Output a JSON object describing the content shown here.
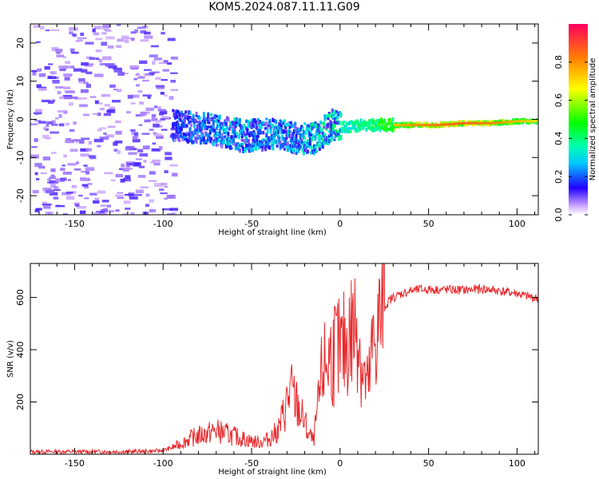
{
  "title": "KOM5.2024.087.11.11.G09",
  "chart_data": [
    {
      "type": "heatmap",
      "xlabel": "Height of straight line (km)",
      "ylabel": "Frequency (Hz)",
      "xlim": [
        -175,
        112
      ],
      "ylim": [
        -25,
        25
      ],
      "xticks": [
        -150,
        -100,
        -50,
        0,
        50,
        100
      ],
      "yticks": [
        -20,
        -10,
        0,
        10,
        20
      ],
      "colorbar": {
        "label": "Normalized spectral amplitude",
        "range": [
          0,
          1
        ],
        "ticks": [
          "0.0",
          "0.2",
          "0.4",
          "0.6",
          "0.8"
        ]
      },
      "signal_track": [
        {
          "x": -95,
          "y": -1.5,
          "amp": 0.15
        },
        {
          "x": -85,
          "y": -2,
          "amp": 0.2
        },
        {
          "x": -75,
          "y": -2.5,
          "amp": 0.2
        },
        {
          "x": -65,
          "y": -3.5,
          "amp": 0.25
        },
        {
          "x": -55,
          "y": -4.5,
          "amp": 0.25
        },
        {
          "x": -45,
          "y": -4,
          "amp": 0.25
        },
        {
          "x": -35,
          "y": -3.5,
          "amp": 0.25
        },
        {
          "x": -25,
          "y": -5,
          "amp": 0.25
        },
        {
          "x": -15,
          "y": -5,
          "amp": 0.3
        },
        {
          "x": -5,
          "y": -1.5,
          "amp": 0.3
        },
        {
          "x": 5,
          "y": -2,
          "amp": 0.35
        },
        {
          "x": 15,
          "y": -1.5,
          "amp": 0.4
        },
        {
          "x": 25,
          "y": -1.5,
          "amp": 0.45
        },
        {
          "x": 40,
          "y": -1.5,
          "amp": 0.55
        },
        {
          "x": 55,
          "y": -1.5,
          "amp": 0.6
        },
        {
          "x": 70,
          "y": -1,
          "amp": 0.62
        },
        {
          "x": 85,
          "y": -1,
          "amp": 0.58
        },
        {
          "x": 100,
          "y": -0.5,
          "amp": 0.5
        },
        {
          "x": 112,
          "y": -0.5,
          "amp": 0.45
        }
      ]
    },
    {
      "type": "line",
      "xlabel": "Height of straight line (km)",
      "ylabel": "SNR (v/v)",
      "xlim": [
        -175,
        112
      ],
      "ylim": [
        0,
        730
      ],
      "xticks": [
        -150,
        -100,
        -50,
        0,
        50,
        100
      ],
      "yticks": [
        200,
        400,
        600
      ],
      "color": "#e8282b",
      "x": [
        -175,
        -160,
        -140,
        -120,
        -105,
        -100,
        -95,
        -90,
        -85,
        -80,
        -75,
        -70,
        -65,
        -60,
        -55,
        -50,
        -45,
        -40,
        -35,
        -32,
        -30,
        -28,
        -25,
        -22,
        -20,
        -18,
        -15,
        -12,
        -10,
        -8,
        -5,
        -2,
        0,
        3,
        5,
        8,
        10,
        12,
        14,
        16,
        18,
        20,
        22,
        25,
        28,
        30,
        35,
        40,
        45,
        50,
        60,
        70,
        80,
        90,
        100,
        105,
        112
      ],
      "y": [
        10,
        10,
        10,
        10,
        12,
        15,
        25,
        40,
        60,
        70,
        80,
        90,
        80,
        70,
        60,
        50,
        45,
        60,
        90,
        150,
        200,
        240,
        200,
        150,
        120,
        80,
        50,
        200,
        320,
        350,
        380,
        400,
        380,
        420,
        450,
        480,
        520,
        350,
        280,
        250,
        380,
        450,
        500,
        560,
        590,
        600,
        615,
        625,
        630,
        630,
        630,
        628,
        632,
        625,
        615,
        605,
        595
      ]
    }
  ]
}
